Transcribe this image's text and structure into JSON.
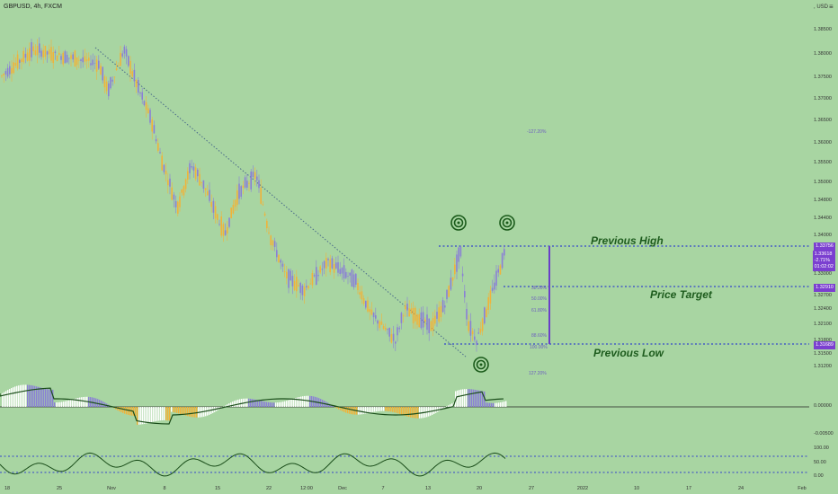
{
  "header": {
    "symbol": "GBPUSD, 4h, FXCM",
    "currency": ", USD"
  },
  "menu_glyph": "≡",
  "annotations": {
    "previous_high": "Previous High",
    "price_target": "Price Target",
    "previous_low": "Previous Low"
  },
  "price_labels": {
    "high": "1.33756",
    "current_price": "1.33618",
    "current_change": "-2.71%",
    "current_timer": "01:02:02",
    "target": "1.32910",
    "low": "1.31689"
  },
  "fib_labels": [
    "-127.20%",
    "38.20%",
    "50.00%",
    "61.80%",
    "88.60%",
    "100.00%",
    "127.20%"
  ],
  "colors": {
    "background": "#a8d5a2",
    "up": "#f0b33a",
    "down": "#8a7fd6",
    "level_line": "#3344cc",
    "annotation_text": "#1e5c1e",
    "label_bg": "#7b3fd0",
    "oscillator_line": "#1a4d1a"
  },
  "chart_data": {
    "type": "candlestick",
    "symbol": "GBPUSD",
    "timeframe": "4h",
    "y_axis": {
      "range": [
        1.3105,
        1.387
      ],
      "ticks": [
        "1.38500",
        "1.38000",
        "1.37500",
        "1.37000",
        "1.36500",
        "1.36000",
        "1.35500",
        "1.35000",
        "1.34800",
        "1.34400",
        "1.34000",
        "1.33500",
        "1.33000",
        "1.32700",
        "1.32400",
        "1.32100",
        "1.31800",
        "1.31500",
        "1.31200"
      ]
    },
    "x_axis": {
      "ticks": [
        "18",
        "25",
        "Nov",
        "8",
        "15",
        "22",
        "12:00",
        "Dec",
        "7",
        "13",
        "20",
        "27",
        "2022",
        "10",
        "17",
        "24",
        "Feb"
      ]
    },
    "trend_line": {
      "from": {
        "x": "Oct 25",
        "y": 1.3815
      },
      "to": {
        "x": "Dec 15",
        "y": 1.3145
      }
    },
    "levels": [
      {
        "name": "Previous High",
        "value": 1.33756
      },
      {
        "name": "Price Target",
        "value": 1.3291
      },
      {
        "name": "Previous Low",
        "value": 1.31689
      }
    ],
    "path_points": [
      1.375,
      1.381,
      1.378,
      1.372,
      1.381,
      1.372,
      1.366,
      1.357,
      1.347,
      1.356,
      1.352,
      1.341,
      1.35,
      1.354,
      1.341,
      1.332,
      1.329,
      1.335,
      1.331,
      1.324,
      1.318,
      1.325,
      1.321,
      1.326,
      1.3375,
      1.322,
      1.318,
      1.327,
      1.3375
    ],
    "oscillators": [
      {
        "name": "histogram",
        "ticks": [
          "0.00000",
          "-0.00500"
        ]
      },
      {
        "name": "oscillator",
        "ticks": [
          "100.00",
          "50.00",
          "0.00"
        ]
      }
    ]
  }
}
